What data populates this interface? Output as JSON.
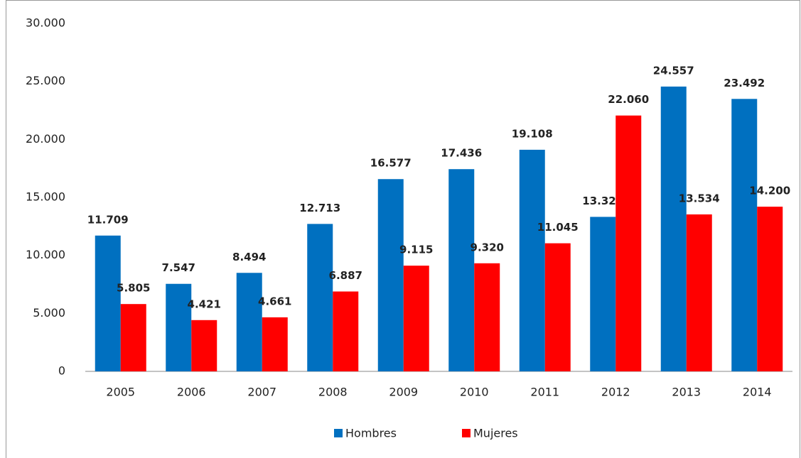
{
  "chart_data": {
    "type": "bar",
    "categories": [
      "2005",
      "2006",
      "2007",
      "2008",
      "2009",
      "2010",
      "2011",
      "2012",
      "2013",
      "2014"
    ],
    "series": [
      {
        "name": "Hombres",
        "color": "#0070c0",
        "values": [
          11709,
          7547,
          8494,
          12713,
          16577,
          17436,
          19108,
          13321,
          24557,
          23492
        ],
        "value_labels": [
          "11.709",
          "7.547",
          "8.494",
          "12.713",
          "16.577",
          "17.436",
          "19.108",
          "13.321",
          "24.557",
          "23.492"
        ]
      },
      {
        "name": "Mujeres",
        "color": "#ff0000",
        "values": [
          5805,
          4421,
          4661,
          6887,
          9115,
          9320,
          11045,
          22060,
          13534,
          14200
        ],
        "value_labels": [
          "5.805",
          "4.421",
          "4.661",
          "6.887",
          "9.115",
          "9.320",
          "11.045",
          "22.060",
          "13.534",
          "14.200"
        ]
      }
    ],
    "ylim": [
      0,
      30000
    ],
    "yticks": [
      0,
      {
        "value": 5000,
        "label": "5.000"
      },
      {
        "value": 10000,
        "label": "10.000"
      },
      {
        "value": 15000,
        "label": "15.000"
      },
      {
        "value": 20000,
        "label": "20.000"
      },
      {
        "value": 25000,
        "label": "25.000"
      },
      {
        "value": 30000,
        "label": "30.000"
      }
    ],
    "grid": false,
    "legend": "bottom"
  }
}
